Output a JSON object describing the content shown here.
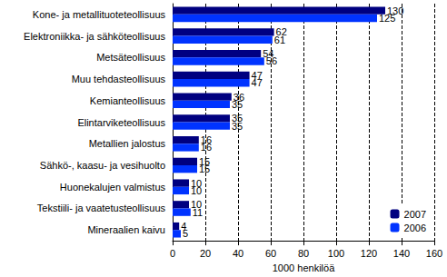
{
  "chart_data": {
    "type": "bar",
    "orientation": "horizontal",
    "categories": [
      "Kone- ja metallituoteteollisuus",
      "Elektroniikka- ja sähköteollisuus",
      "Metsäteollisuus",
      "Muu tehdasteollisuus",
      "Kemianteollisuus",
      "Elintarviketeollisuus",
      "Metallien jalostus",
      "Sähkö-, kaasu- ja vesihuolto",
      "Huonekalujen valmistus",
      "Tekstiili- ja vaatetusteollisuus",
      "Mineraalien kaivu"
    ],
    "series": [
      {
        "name": "2007",
        "color": "#000080",
        "values": [
          130,
          62,
          54,
          47,
          36,
          35,
          16,
          15,
          10,
          10,
          4
        ]
      },
      {
        "name": "2006",
        "color": "#0033ff",
        "values": [
          125,
          61,
          56,
          47,
          35,
          35,
          16,
          15,
          10,
          11,
          5
        ]
      }
    ],
    "x_label": "1000 henkilöä",
    "xlim": [
      0,
      160
    ],
    "xticks": [
      0,
      20,
      40,
      60,
      80,
      100,
      120,
      140,
      160
    ],
    "grid": true,
    "legend": "lower right",
    "data_labels": true
  }
}
